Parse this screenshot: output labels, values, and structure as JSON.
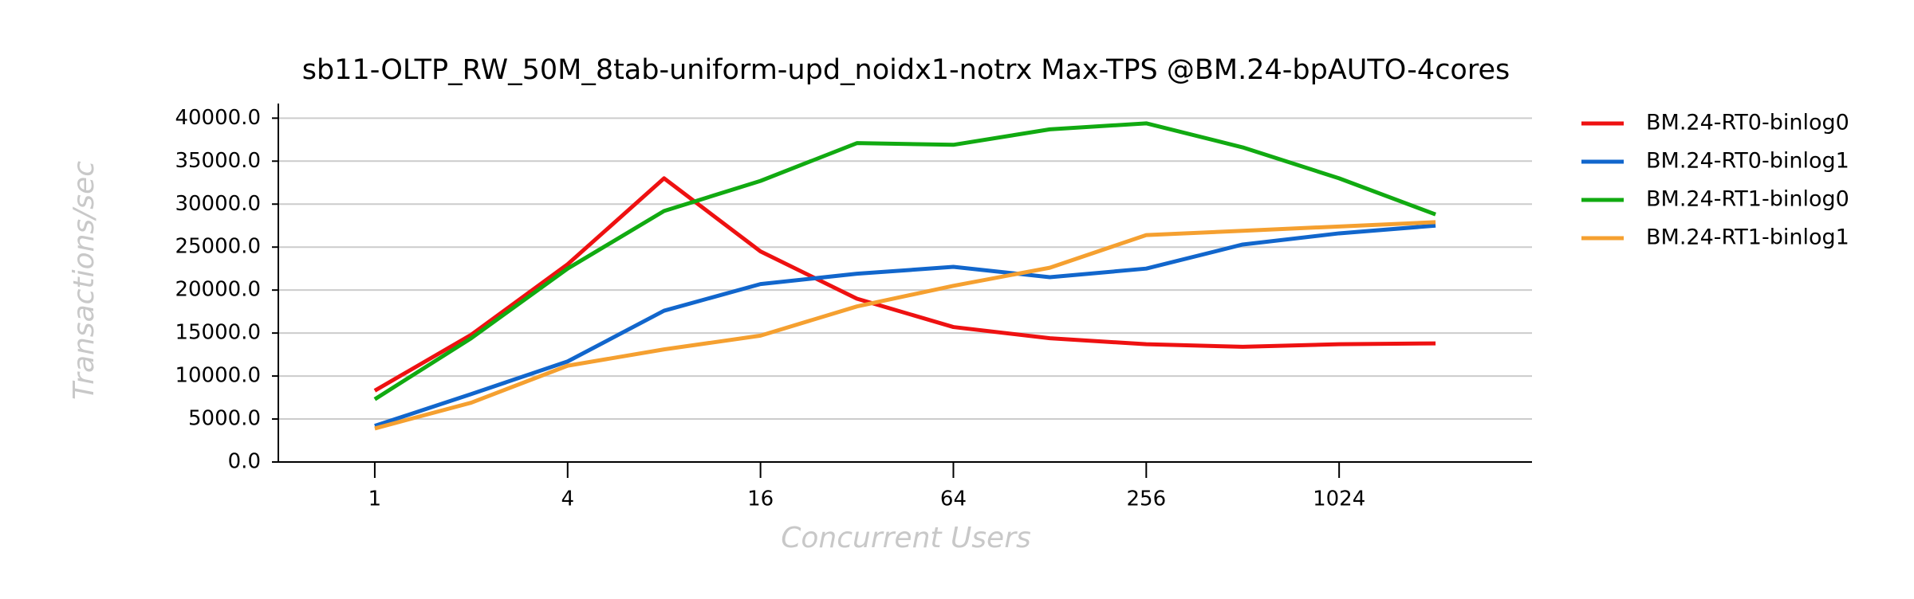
{
  "chart_data": {
    "type": "line",
    "title": "sb11-OLTP_RW_50M_8tab-uniform-upd_noidx1-notrx Max-TPS @BM.24-bpAUTO-4cores",
    "xlabel": "Concurrent Users",
    "ylabel": "Transactions/sec",
    "xscale": "log2",
    "x": [
      1,
      2,
      4,
      8,
      16,
      32,
      64,
      128,
      256,
      512,
      1024,
      2048
    ],
    "xlim": [
      0.5,
      4096
    ],
    "xticks": [
      1,
      4,
      16,
      64,
      256,
      1024
    ],
    "ylim": [
      0,
      41700
    ],
    "yticks": [
      {
        "value": 0,
        "label": "0.0"
      },
      {
        "value": 5000,
        "label": "5000.0"
      },
      {
        "value": 10000,
        "label": "10000.0"
      },
      {
        "value": 15000,
        "label": "15000.0"
      },
      {
        "value": 20000,
        "label": "20000.0"
      },
      {
        "value": 25000,
        "label": "25000.0"
      },
      {
        "value": 30000,
        "label": "30000.0"
      },
      {
        "value": 35000,
        "label": "35000.0"
      },
      {
        "value": 40000,
        "label": "40000.0"
      }
    ],
    "grid": true,
    "legend": "right",
    "series": [
      {
        "name": "BM.24-RT0-binlog0",
        "color": "#ee1111",
        "values": [
          8300,
          14800,
          23000,
          33000,
          24500,
          19000,
          15700,
          14400,
          13700,
          13400,
          13700,
          13800
        ]
      },
      {
        "name": "BM.24-RT0-binlog1",
        "color": "#1166cc",
        "values": [
          4200,
          7900,
          11700,
          17600,
          20700,
          21900,
          22700,
          21500,
          22500,
          25300,
          26600,
          27500
        ]
      },
      {
        "name": "BM.24-RT1-binlog0",
        "color": "#11aa11",
        "values": [
          7300,
          14400,
          22500,
          29200,
          32700,
          37100,
          36900,
          38700,
          39400,
          36600,
          33000,
          28800
        ]
      },
      {
        "name": "BM.24-RT1-binlog1",
        "color": "#f5a030",
        "values": [
          3900,
          6900,
          11200,
          13100,
          14700,
          18100,
          20500,
          22600,
          26400,
          26900,
          27400,
          27900
        ]
      }
    ]
  }
}
